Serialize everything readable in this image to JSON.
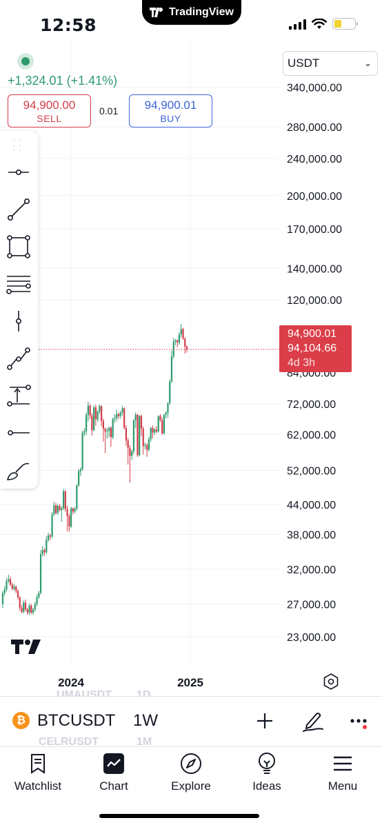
{
  "status_bar": {
    "time": "12:58",
    "app_pill": "TradingView",
    "pill_logo": "tradingview-logo-icon"
  },
  "header": {
    "change": "+1,324.01 (+1.41%)",
    "sell": {
      "price": "94,900.00",
      "label": "SELL"
    },
    "buy": {
      "price": "94,900.01",
      "label": "BUY"
    },
    "spread": "0.01",
    "currency": {
      "value": "USDT"
    }
  },
  "toolbar": {
    "tools": [
      "horizontal-ray-icon",
      "trend-line-icon",
      "rectangle-icon",
      "fib-levels-icon",
      "vertical-line-icon",
      "path-icon",
      "long-position-icon",
      "horizontal-line-icon",
      "brush-icon"
    ]
  },
  "price_tag": {
    "ask": "94,900.01",
    "last": "94,104.66",
    "countdown": "4d 3h"
  },
  "price_axis_hidden_label": "84,000.00",
  "colors": {
    "up": "#2e9a6c",
    "down": "#d23a47",
    "sell": "#d23a47",
    "buy": "#3b63d6",
    "tag": "#db3e48",
    "grid": "#eef0f4"
  },
  "chart_data": {
    "type": "candlestick",
    "symbol": "BTCUSDT",
    "interval": "1W",
    "y_scale": "log",
    "y_ticks": [
      "340,000.00",
      "280,000.00",
      "240,000.00",
      "200,000.00",
      "170,000.00",
      "140,000.00",
      "120,000.00",
      "72,000.00",
      "62,000.00",
      "52,000.00",
      "44,000.00",
      "38,000.00",
      "32,000.00",
      "27,000.00",
      "23,000.00"
    ],
    "y_tick_values": [
      340000,
      280000,
      240000,
      200000,
      170000,
      140000,
      120000,
      72000,
      62000,
      52000,
      44000,
      38000,
      32000,
      27000,
      23000
    ],
    "x_ticks": [
      "2024",
      "2025"
    ],
    "last_price": 94104.66,
    "closes": [
      28500,
      29000,
      30200,
      30500,
      29700,
      29100,
      29400,
      28800,
      27900,
      26500,
      26000,
      27200,
      26300,
      25900,
      26800,
      25900,
      26300,
      27000,
      27900,
      28500,
      34500,
      35200,
      34800,
      37000,
      37800,
      37600,
      41900,
      43800,
      42200,
      43700,
      42800,
      43200,
      46900,
      43000,
      41600,
      39500,
      43200,
      42500,
      43100,
      48300,
      51800,
      52300,
      62500,
      63000,
      68300,
      71400,
      68000,
      63300,
      70800,
      66800,
      69400,
      71300,
      66300,
      63800,
      62900,
      63100,
      64100,
      61200,
      66900,
      67200,
      68500,
      67900,
      69000,
      70500,
      64000,
      60200,
      58000,
      55800,
      57100,
      66500,
      68300,
      56000,
      67900,
      63800,
      58600,
      58900,
      57500,
      60600,
      64000,
      62600,
      63500,
      62900,
      67900,
      66500,
      62300,
      68300,
      69000,
      72300,
      80400,
      91000,
      97800,
      98400,
      97300,
      101300,
      104000,
      99200,
      95400,
      94100
    ],
    "opens": [
      27000,
      28500,
      29000,
      30200,
      30500,
      29700,
      29100,
      29400,
      28800,
      27900,
      26500,
      26000,
      27200,
      26300,
      25900,
      26800,
      25900,
      26300,
      27000,
      27900,
      28500,
      34500,
      35200,
      34800,
      37000,
      37800,
      37600,
      41900,
      43800,
      42200,
      43700,
      42800,
      43200,
      46900,
      43000,
      41600,
      39500,
      43200,
      42500,
      43100,
      48300,
      51800,
      52300,
      62500,
      63000,
      68300,
      71400,
      68000,
      63300,
      70800,
      66800,
      69400,
      71300,
      66300,
      63800,
      62900,
      63100,
      64100,
      61200,
      66900,
      67200,
      68500,
      67900,
      69000,
      70500,
      64000,
      60200,
      58000,
      55800,
      57100,
      66500,
      68300,
      56000,
      67900,
      63800,
      58600,
      58900,
      57500,
      60600,
      64000,
      62600,
      63500,
      62900,
      67900,
      66500,
      62300,
      68300,
      69000,
      72300,
      80400,
      91000,
      97800,
      98400,
      97300,
      101300,
      104000,
      99200,
      95400
    ],
    "highs": [
      28800,
      29500,
      30700,
      31200,
      30900,
      30000,
      29800,
      29600,
      29000,
      28100,
      26900,
      27500,
      27600,
      26500,
      27100,
      27000,
      26500,
      27300,
      28300,
      28800,
      35200,
      35900,
      35500,
      37700,
      38300,
      38100,
      42400,
      44600,
      44300,
      44000,
      44100,
      43600,
      47500,
      47200,
      43700,
      42000,
      43500,
      43300,
      43500,
      48600,
      52300,
      52800,
      63200,
      64000,
      69100,
      72800,
      72100,
      68800,
      71400,
      71700,
      69800,
      71900,
      71500,
      67000,
      64100,
      64100,
      64400,
      64500,
      67400,
      68400,
      70000,
      69000,
      69600,
      71400,
      70800,
      64900,
      61000,
      58800,
      57600,
      66800,
      69100,
      68600,
      68200,
      68400,
      64500,
      59600,
      59400,
      61300,
      64400,
      64800,
      64100,
      64600,
      68100,
      68500,
      67400,
      68600,
      69500,
      72700,
      81300,
      93400,
      99600,
      99000,
      98800,
      102500,
      106600,
      104600,
      99800,
      96000
    ],
    "lows": [
      26500,
      28100,
      28700,
      29900,
      29500,
      28900,
      28800,
      28500,
      27600,
      26100,
      25800,
      25800,
      26100,
      25600,
      25600,
      25700,
      25600,
      26000,
      26700,
      27700,
      28300,
      34100,
      34200,
      34500,
      36600,
      36900,
      37300,
      41600,
      41900,
      41800,
      42500,
      40400,
      42800,
      42500,
      38600,
      38500,
      39200,
      41900,
      42100,
      42700,
      48000,
      50600,
      51900,
      61500,
      61800,
      66100,
      66900,
      61700,
      63000,
      64700,
      66000,
      68500,
      64500,
      59900,
      56600,
      60700,
      61200,
      58400,
      60600,
      65700,
      66100,
      66900,
      67000,
      68000,
      63600,
      58700,
      53500,
      49000,
      54700,
      56300,
      63900,
      55500,
      55700,
      61600,
      56200,
      57600,
      55600,
      57100,
      59800,
      60800,
      61900,
      62400,
      62600,
      66000,
      62000,
      62000,
      67000,
      67400,
      71700,
      79800,
      90000,
      96100,
      95100,
      96200,
      99800,
      98600,
      92200,
      92700
    ]
  },
  "symbol_bar": {
    "symbol": "BTCUSDT",
    "interval": "1W",
    "ghost_top_symbol": "UMAUSDT",
    "ghost_top_interval": "1D",
    "ghost_bottom_symbol": "CELRUSDT",
    "ghost_bottom_interval": "1M"
  },
  "nav": [
    {
      "label": "Watchlist",
      "icon": "watchlist-icon"
    },
    {
      "label": "Chart",
      "icon": "chart-icon"
    },
    {
      "label": "Explore",
      "icon": "compass-icon"
    },
    {
      "label": "Ideas",
      "icon": "lightbulb-icon"
    },
    {
      "label": "Menu",
      "icon": "menu-icon"
    }
  ]
}
